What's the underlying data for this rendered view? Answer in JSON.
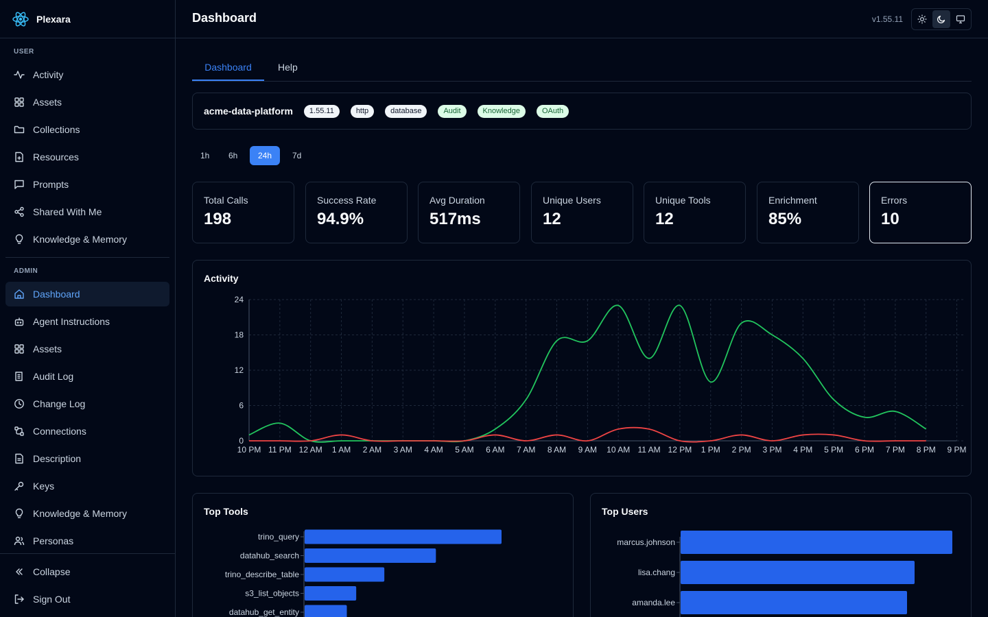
{
  "app": {
    "name": "Plexara"
  },
  "header": {
    "title": "Dashboard",
    "version": "v1.55.11"
  },
  "sidebar": {
    "user_label": "USER",
    "user_items": [
      {
        "label": "Activity",
        "icon": "activity-icon"
      },
      {
        "label": "Assets",
        "icon": "grid-icon"
      },
      {
        "label": "Collections",
        "icon": "folder-icon"
      },
      {
        "label": "Resources",
        "icon": "file-icon"
      },
      {
        "label": "Prompts",
        "icon": "message-icon"
      },
      {
        "label": "Shared With Me",
        "icon": "share-icon"
      },
      {
        "label": "Knowledge & Memory",
        "icon": "lightbulb-icon"
      }
    ],
    "admin_label": "ADMIN",
    "admin_items": [
      {
        "label": "Dashboard",
        "icon": "home-icon",
        "active": true
      },
      {
        "label": "Agent Instructions",
        "icon": "bot-icon"
      },
      {
        "label": "Assets",
        "icon": "grid-icon"
      },
      {
        "label": "Audit Log",
        "icon": "scroll-icon"
      },
      {
        "label": "Change Log",
        "icon": "clock-icon"
      },
      {
        "label": "Connections",
        "icon": "cable-icon"
      },
      {
        "label": "Description",
        "icon": "file-text-icon"
      },
      {
        "label": "Keys",
        "icon": "key-icon"
      },
      {
        "label": "Knowledge & Memory",
        "icon": "lightbulb-icon"
      },
      {
        "label": "Personas",
        "icon": "users-icon"
      }
    ],
    "collapse": "Collapse",
    "sign_out": "Sign Out"
  },
  "tabs": [
    {
      "label": "Dashboard",
      "active": true
    },
    {
      "label": "Help"
    }
  ],
  "info": {
    "name": "acme-data-platform",
    "badges": [
      {
        "label": "1.55.11",
        "style": "gray"
      },
      {
        "label": "http",
        "style": "gray"
      },
      {
        "label": "database",
        "style": "gray"
      },
      {
        "label": "Audit",
        "style": "green"
      },
      {
        "label": "Knowledge",
        "style": "green"
      },
      {
        "label": "OAuth",
        "style": "green"
      }
    ]
  },
  "time_ranges": [
    {
      "label": "1h"
    },
    {
      "label": "6h"
    },
    {
      "label": "24h",
      "active": true
    },
    {
      "label": "7d"
    }
  ],
  "stats": [
    {
      "label": "Total Calls",
      "value": "198"
    },
    {
      "label": "Success Rate",
      "value": "94.9%"
    },
    {
      "label": "Avg Duration",
      "value": "517ms"
    },
    {
      "label": "Unique Users",
      "value": "12"
    },
    {
      "label": "Unique Tools",
      "value": "12"
    },
    {
      "label": "Enrichment",
      "value": "85%"
    },
    {
      "label": "Errors",
      "value": "10",
      "highlighted": true
    }
  ],
  "colors": {
    "accent": "#3b82f6",
    "success_line": "#22c55e",
    "error_line": "#ef4444",
    "bar": "#2563eb"
  },
  "chart_data": [
    {
      "type": "line",
      "title": "Activity",
      "x": [
        "10 PM",
        "11 PM",
        "12 AM",
        "1 AM",
        "2 AM",
        "3 AM",
        "4 AM",
        "5 AM",
        "6 AM",
        "7 AM",
        "8 AM",
        "9 AM",
        "10 AM",
        "11 AM",
        "12 PM",
        "1 PM",
        "2 PM",
        "3 PM",
        "4 PM",
        "5 PM",
        "6 PM",
        "7 PM",
        "8 PM",
        "9 PM"
      ],
      "ylim": [
        0,
        24
      ],
      "yticks": [
        0,
        6,
        12,
        18,
        24
      ],
      "grid": true,
      "series": [
        {
          "color": "#22c55e",
          "values": [
            1,
            3,
            0,
            0,
            0,
            0,
            0,
            0,
            2,
            7,
            17,
            17,
            23,
            14,
            23,
            10,
            20,
            18,
            14,
            7,
            4,
            5,
            2,
            null
          ]
        },
        {
          "color": "#ef4444",
          "values": [
            0,
            0,
            0,
            1,
            0,
            0,
            0,
            0,
            1,
            0,
            1,
            0,
            2,
            2,
            0,
            0,
            1,
            0,
            1,
            1,
            0,
            0,
            0,
            null
          ]
        }
      ]
    },
    {
      "type": "bar",
      "orientation": "horizontal",
      "title": "Top Tools",
      "categories": [
        "trino_query",
        "datahub_search",
        "trino_describe_table",
        "s3_list_objects",
        "datahub_get_entity"
      ],
      "values": [
        42,
        28,
        17,
        11,
        9
      ]
    },
    {
      "type": "bar",
      "orientation": "horizontal",
      "title": "Top Users",
      "categories": [
        "marcus.johnson",
        "lisa.chang",
        "amanda.lee"
      ],
      "values": [
        36,
        31,
        30
      ]
    }
  ]
}
